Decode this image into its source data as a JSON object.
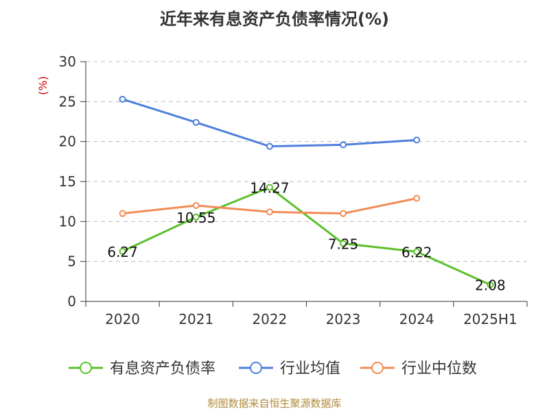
{
  "title": "近年来有息资产负债率情况(%)",
  "source": "制图数据来自恒生聚源数据库",
  "colors": {
    "series_green": "#5bbf2a",
    "series_blue": "#4e7fdc",
    "series_orange": "#f28b54",
    "axis": "#333333",
    "grid": "#bbbbbb",
    "unit": "#cc0000"
  },
  "chart_data": {
    "type": "line",
    "title": "近年来有息资产负债率情况(%)",
    "ylabel": "(%)",
    "xlabel": "",
    "categories": [
      "2020",
      "2021",
      "2022",
      "2023",
      "2024",
      "2025H1"
    ],
    "ylim": [
      0,
      30
    ],
    "yticks": [
      0,
      5,
      10,
      15,
      20,
      25,
      30
    ],
    "grid": "horizontal dashed",
    "legend_position": "bottom",
    "series": [
      {
        "name": "有息资产负债率",
        "color": "#5bbf2a",
        "labeled": true,
        "values": [
          6.27,
          10.55,
          14.27,
          7.25,
          6.22,
          2.08
        ],
        "labels": [
          "6.27",
          "10.55",
          "14.27",
          "7.25",
          "6.22",
          "2.08"
        ]
      },
      {
        "name": "行业均值",
        "color": "#4e7fdc",
        "labeled": false,
        "values": [
          25.3,
          22.4,
          19.4,
          19.6,
          20.2,
          null
        ]
      },
      {
        "name": "行业中位数",
        "color": "#f28b54",
        "labeled": false,
        "values": [
          11.0,
          12.0,
          11.2,
          11.0,
          12.9,
          null
        ]
      }
    ]
  }
}
